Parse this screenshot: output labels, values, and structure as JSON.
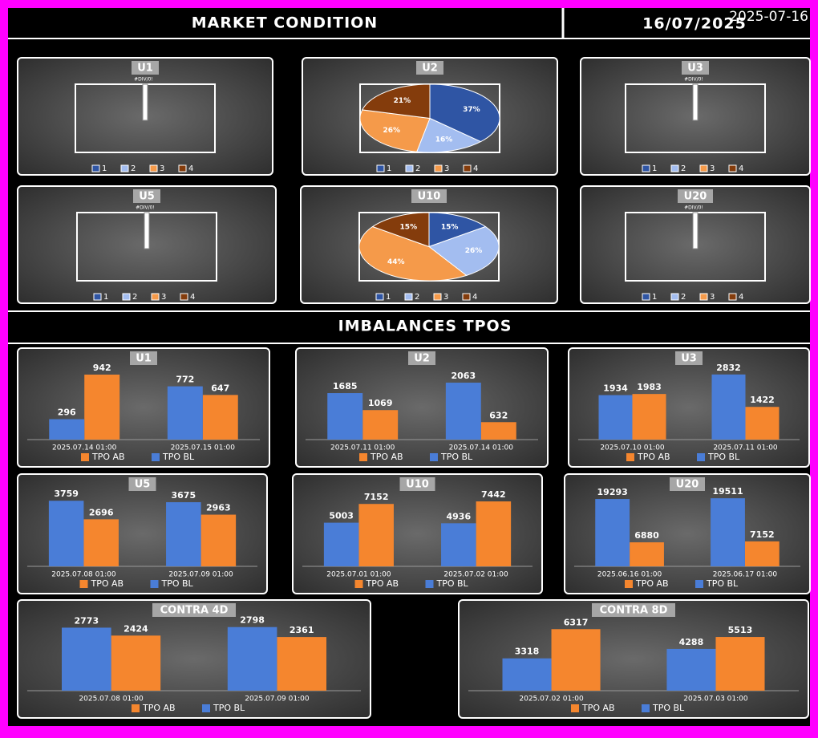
{
  "header": {
    "title": "MARKET CONDITION",
    "date": "16/07/2025",
    "timestamp": "2025-07-16"
  },
  "section_title": "IMBALANCES TPOS",
  "chart_data": [
    {
      "type": "pie",
      "title": "U1",
      "categories": [
        "1",
        "2",
        "3",
        "4"
      ],
      "colors": [
        "#2f55a4",
        "#a3bdf0",
        "#f59a4a",
        "#843c0c"
      ],
      "values": [
        null,
        null,
        null,
        null
      ],
      "error_label": "#DIV/0!"
    },
    {
      "type": "pie",
      "title": "U2",
      "categories": [
        "1",
        "2",
        "3",
        "4"
      ],
      "colors": [
        "#2f55a4",
        "#a3bdf0",
        "#f59a4a",
        "#843c0c"
      ],
      "values": [
        37,
        16,
        26,
        21
      ],
      "value_labels": [
        "37%",
        "16%",
        "26%",
        "21%"
      ]
    },
    {
      "type": "pie",
      "title": "U3",
      "categories": [
        "1",
        "2",
        "3",
        "4"
      ],
      "colors": [
        "#2f55a4",
        "#a3bdf0",
        "#f59a4a",
        "#843c0c"
      ],
      "values": [
        null,
        null,
        null,
        null
      ],
      "error_label": "#DIV/0!"
    },
    {
      "type": "pie",
      "title": "U5",
      "categories": [
        "1",
        "2",
        "3",
        "4"
      ],
      "colors": [
        "#2f55a4",
        "#a3bdf0",
        "#f59a4a",
        "#843c0c"
      ],
      "values": [
        null,
        null,
        null,
        null
      ],
      "error_label": "#DIV/0!"
    },
    {
      "type": "pie",
      "title": "U10",
      "categories": [
        "1",
        "2",
        "3",
        "4"
      ],
      "colors": [
        "#2f55a4",
        "#a3bdf0",
        "#f59a4a",
        "#843c0c"
      ],
      "values": [
        15,
        26,
        44,
        15
      ],
      "value_labels": [
        "15%",
        "26%",
        "44%",
        "15%"
      ]
    },
    {
      "type": "pie",
      "title": "U20",
      "categories": [
        "1",
        "2",
        "3",
        "4"
      ],
      "colors": [
        "#2f55a4",
        "#a3bdf0",
        "#f59a4a",
        "#843c0c"
      ],
      "values": [
        null,
        null,
        null,
        null
      ],
      "error_label": "#DIV/0!"
    },
    {
      "type": "bar",
      "title": "U1",
      "categories": [
        "2025.07.14 01:00",
        "2025.07.15 01:00"
      ],
      "series": [
        {
          "name": "TPO AB",
          "color": "#f5862e",
          "values": [
            942,
            647
          ]
        },
        {
          "name": "TPO BL",
          "color": "#4a7dd7",
          "values": [
            296,
            772
          ]
        }
      ],
      "ylim": [
        0,
        1000
      ]
    },
    {
      "type": "bar",
      "title": "U2",
      "categories": [
        "2025.07.11 01:00",
        "2025.07.14 01:00"
      ],
      "series": [
        {
          "name": "TPO AB",
          "color": "#f5862e",
          "values": [
            1069,
            632
          ]
        },
        {
          "name": "TPO BL",
          "color": "#4a7dd7",
          "values": [
            1685,
            2063
          ]
        }
      ],
      "ylim": [
        0,
        2500
      ]
    },
    {
      "type": "bar",
      "title": "U3",
      "categories": [
        "2025.07.10 01:00",
        "2025.07.11 01:00"
      ],
      "series": [
        {
          "name": "TPO AB",
          "color": "#f5862e",
          "values": [
            1983,
            1422
          ]
        },
        {
          "name": "TPO BL",
          "color": "#4a7dd7",
          "values": [
            1934,
            2832
          ]
        }
      ],
      "ylim": [
        0,
        3000
      ]
    },
    {
      "type": "bar",
      "title": "U5",
      "categories": [
        "2025.07.08 01:00",
        "2025.07.09 01:00"
      ],
      "series": [
        {
          "name": "TPO AB",
          "color": "#f5862e",
          "values": [
            2696,
            2963
          ]
        },
        {
          "name": "TPO BL",
          "color": "#4a7dd7",
          "values": [
            3759,
            3675
          ]
        }
      ],
      "ylim": [
        0,
        4000
      ]
    },
    {
      "type": "bar",
      "title": "U10",
      "categories": [
        "2025.07.01 01:00",
        "2025.07.02 01:00"
      ],
      "series": [
        {
          "name": "TPO AB",
          "color": "#f5862e",
          "values": [
            7152,
            7442
          ]
        },
        {
          "name": "TPO BL",
          "color": "#4a7dd7",
          "values": [
            5003,
            4936
          ]
        }
      ],
      "ylim": [
        0,
        8000
      ]
    },
    {
      "type": "bar",
      "title": "U20",
      "categories": [
        "2025.06.16 01:00",
        "2025.06.17 01:00"
      ],
      "series": [
        {
          "name": "TPO AB",
          "color": "#f5862e",
          "values": [
            6880,
            7152
          ]
        },
        {
          "name": "TPO BL",
          "color": "#4a7dd7",
          "values": [
            19293,
            19511
          ]
        }
      ],
      "ylim": [
        0,
        20000
      ]
    },
    {
      "type": "bar",
      "title": "CONTRA 4D",
      "categories": [
        "2025.07.08 01:00",
        "2025.07.09 01:00"
      ],
      "series": [
        {
          "name": "TPO AB",
          "color": "#f5862e",
          "values": [
            2424,
            2361
          ]
        },
        {
          "name": "TPO BL",
          "color": "#4a7dd7",
          "values": [
            2773,
            2798
          ]
        }
      ],
      "ylim": [
        0,
        3000
      ]
    },
    {
      "type": "bar",
      "title": "CONTRA 8D",
      "categories": [
        "2025.07.02 01:00",
        "2025.07.03 01:00"
      ],
      "series": [
        {
          "name": "TPO AB",
          "color": "#f5862e",
          "values": [
            6317,
            5513
          ]
        },
        {
          "name": "TPO BL",
          "color": "#4a7dd7",
          "values": [
            3318,
            4288
          ]
        }
      ],
      "ylim": [
        0,
        7000
      ]
    }
  ]
}
